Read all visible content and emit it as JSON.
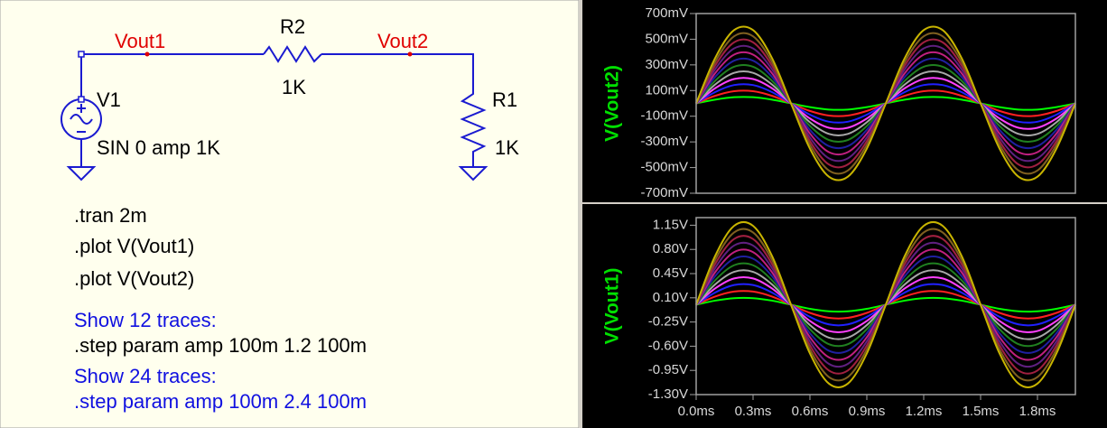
{
  "schematic": {
    "net_labels": [
      "Vout1",
      "Vout2"
    ],
    "components": [
      {
        "name": "R2",
        "value": "1K"
      },
      {
        "name": "R1",
        "value": "1K"
      },
      {
        "name": "V1",
        "value": "SIN 0 amp 1K"
      }
    ],
    "directives": [
      ".tran 2m",
      ".plot V(Vout1)",
      ".plot V(Vout2)"
    ],
    "notes": [
      {
        "label": "Show 12 traces:",
        "directive": ".step param amp 100m 1.2 100m"
      },
      {
        "label": "Show 24 traces:",
        "directive": ".step param amp 100m 2.4 100m"
      }
    ]
  },
  "chart_data": [
    {
      "type": "line",
      "y_label": "V(Vout2)",
      "x": [
        0,
        0.1,
        0.2,
        0.3,
        0.4,
        0.5,
        0.6,
        0.7,
        0.8,
        0.9,
        1.0,
        1.1,
        1.2,
        1.3,
        1.4,
        1.5,
        1.6,
        1.7,
        1.8,
        1.9,
        2.0
      ],
      "xlim": [
        0,
        2
      ],
      "ylim": [
        -700,
        700
      ],
      "yticks": [
        {
          "value": 700,
          "label": "700mV"
        },
        {
          "value": 500,
          "label": "500mV"
        },
        {
          "value": 300,
          "label": "300mV"
        },
        {
          "value": 100,
          "label": "100mV"
        },
        {
          "value": -100,
          "label": "-100mV"
        },
        {
          "value": -300,
          "label": "-300mV"
        },
        {
          "value": -500,
          "label": "-500mV"
        },
        {
          "value": -700,
          "label": "-700mV"
        }
      ],
      "series": [
        {
          "color": "#00ff00",
          "values": [
            0,
            29,
            48,
            48,
            29,
            0,
            -29,
            -48,
            -48,
            -29,
            0,
            29,
            48,
            48,
            29,
            0,
            -29,
            -48,
            -48,
            -29,
            0
          ]
        },
        {
          "color": "#ff2020",
          "values": [
            0,
            59,
            95,
            95,
            59,
            0,
            -59,
            -95,
            -95,
            -59,
            0,
            59,
            95,
            95,
            59,
            0,
            -59,
            -95,
            -95,
            -59,
            0
          ]
        },
        {
          "color": "#2020ff",
          "values": [
            0,
            88,
            143,
            143,
            88,
            0,
            -88,
            -143,
            -143,
            -88,
            0,
            88,
            143,
            143,
            88,
            0,
            -88,
            -143,
            -143,
            -88,
            0
          ]
        },
        {
          "color": "#ff40ff",
          "values": [
            0,
            118,
            190,
            190,
            118,
            0,
            -118,
            -190,
            -190,
            -118,
            0,
            118,
            190,
            190,
            118,
            0,
            -118,
            -190,
            -190,
            -118,
            0
          ]
        },
        {
          "color": "#a8a8a8",
          "values": [
            0,
            147,
            238,
            238,
            147,
            0,
            -147,
            -238,
            -238,
            -147,
            0,
            147,
            238,
            238,
            147,
            0,
            -147,
            -238,
            -238,
            -147,
            0
          ]
        },
        {
          "color": "#208020",
          "values": [
            0,
            176,
            285,
            285,
            176,
            0,
            -176,
            -285,
            -285,
            -176,
            0,
            176,
            285,
            285,
            176,
            0,
            -176,
            -285,
            -285,
            -176,
            0
          ]
        },
        {
          "color": "#2020a0",
          "values": [
            0,
            206,
            333,
            333,
            206,
            0,
            -206,
            -333,
            -333,
            -206,
            0,
            206,
            333,
            333,
            206,
            0,
            -206,
            -333,
            -333,
            -206,
            0
          ]
        },
        {
          "color": "#c02080",
          "values": [
            0,
            235,
            380,
            380,
            235,
            0,
            -235,
            -380,
            -380,
            -235,
            0,
            235,
            380,
            380,
            235,
            0,
            -235,
            -380,
            -380,
            -235,
            0
          ]
        },
        {
          "color": "#602080",
          "values": [
            0,
            265,
            428,
            428,
            265,
            0,
            -265,
            -428,
            -428,
            -265,
            0,
            265,
            428,
            428,
            265,
            0,
            -265,
            -428,
            -428,
            -265,
            0
          ]
        },
        {
          "color": "#a02040",
          "values": [
            0,
            294,
            476,
            476,
            294,
            0,
            -294,
            -476,
            -476,
            -294,
            0,
            294,
            476,
            476,
            294,
            0,
            -294,
            -476,
            -476,
            -294,
            0
          ]
        },
        {
          "color": "#806020",
          "values": [
            0,
            323,
            523,
            523,
            323,
            0,
            -323,
            -523,
            -523,
            -323,
            0,
            323,
            523,
            523,
            323,
            0,
            -323,
            -523,
            -523,
            -323,
            0
          ]
        },
        {
          "color": "#c8b400",
          "values": [
            0,
            353,
            571,
            571,
            353,
            0,
            -353,
            -571,
            -571,
            -353,
            0,
            353,
            571,
            571,
            353,
            0,
            -353,
            -571,
            -571,
            -353,
            0
          ]
        }
      ]
    },
    {
      "type": "line",
      "y_label": "V(Vout1)",
      "x": [
        0,
        0.1,
        0.2,
        0.3,
        0.4,
        0.5,
        0.6,
        0.7,
        0.8,
        0.9,
        1.0,
        1.1,
        1.2,
        1.3,
        1.4,
        1.5,
        1.6,
        1.7,
        1.8,
        1.9,
        2.0
      ],
      "xlim": [
        0,
        2
      ],
      "ylim": [
        -1.3,
        1.26
      ],
      "xticks": [
        {
          "value": 0,
          "label": "0.0ms"
        },
        {
          "value": 0.3,
          "label": "0.3ms"
        },
        {
          "value": 0.6,
          "label": "0.6ms"
        },
        {
          "value": 0.9,
          "label": "0.9ms"
        },
        {
          "value": 1.2,
          "label": "1.2ms"
        },
        {
          "value": 1.5,
          "label": "1.5ms"
        },
        {
          "value": 1.8,
          "label": "1.8ms"
        }
      ],
      "yticks": [
        {
          "value": 1.15,
          "label": "1.15V"
        },
        {
          "value": 0.8,
          "label": "0.80V"
        },
        {
          "value": 0.45,
          "label": "0.45V"
        },
        {
          "value": 0.1,
          "label": "0.10V"
        },
        {
          "value": -0.25,
          "label": "-0.25V"
        },
        {
          "value": -0.6,
          "label": "-0.60V"
        },
        {
          "value": -0.95,
          "label": "-0.95V"
        },
        {
          "value": -1.3,
          "label": "-1.30V"
        }
      ],
      "series": [
        {
          "color": "#00ff00",
          "values": [
            0,
            0.059,
            0.095,
            0.095,
            0.059,
            0,
            -0.059,
            -0.095,
            -0.095,
            -0.059,
            0,
            0.059,
            0.095,
            0.095,
            0.059,
            0,
            -0.059,
            -0.095,
            -0.095,
            -0.059,
            0
          ]
        },
        {
          "color": "#ff2020",
          "values": [
            0,
            0.118,
            0.19,
            0.19,
            0.118,
            0,
            -0.118,
            -0.19,
            -0.19,
            -0.118,
            0,
            0.118,
            0.19,
            0.19,
            0.118,
            0,
            -0.118,
            -0.19,
            -0.19,
            -0.118,
            0
          ]
        },
        {
          "color": "#2020ff",
          "values": [
            0,
            0.176,
            0.285,
            0.285,
            0.176,
            0,
            -0.176,
            -0.285,
            -0.285,
            -0.176,
            0,
            0.176,
            0.285,
            0.285,
            0.176,
            0,
            -0.176,
            -0.285,
            -0.285,
            -0.176,
            0
          ]
        },
        {
          "color": "#ff40ff",
          "values": [
            0,
            0.235,
            0.38,
            0.38,
            0.235,
            0,
            -0.235,
            -0.38,
            -0.38,
            -0.235,
            0,
            0.235,
            0.38,
            0.38,
            0.235,
            0,
            -0.235,
            -0.38,
            -0.38,
            -0.235,
            0
          ]
        },
        {
          "color": "#a8a8a8",
          "values": [
            0,
            0.294,
            0.476,
            0.476,
            0.294,
            0,
            -0.294,
            -0.476,
            -0.476,
            -0.294,
            0,
            0.294,
            0.476,
            0.476,
            0.294,
            0,
            -0.294,
            -0.476,
            -0.476,
            -0.294,
            0
          ]
        },
        {
          "color": "#208020",
          "values": [
            0,
            0.353,
            0.571,
            0.571,
            0.353,
            0,
            -0.353,
            -0.571,
            -0.571,
            -0.353,
            0,
            0.353,
            0.571,
            0.571,
            0.353,
            0,
            -0.353,
            -0.571,
            -0.571,
            -0.353,
            0
          ]
        },
        {
          "color": "#2020a0",
          "values": [
            0,
            0.412,
            0.666,
            0.666,
            0.412,
            0,
            -0.412,
            -0.666,
            -0.666,
            -0.412,
            0,
            0.412,
            0.666,
            0.666,
            0.412,
            0,
            -0.412,
            -0.666,
            -0.666,
            -0.412,
            0
          ]
        },
        {
          "color": "#c02080",
          "values": [
            0,
            0.47,
            0.761,
            0.761,
            0.47,
            0,
            -0.47,
            -0.761,
            -0.761,
            -0.47,
            0,
            0.47,
            0.761,
            0.761,
            0.47,
            0,
            -0.47,
            -0.761,
            -0.761,
            -0.47,
            0
          ]
        },
        {
          "color": "#602080",
          "values": [
            0,
            0.529,
            0.856,
            0.856,
            0.529,
            0,
            -0.529,
            -0.856,
            -0.856,
            -0.529,
            0,
            0.529,
            0.856,
            0.856,
            0.529,
            0,
            -0.529,
            -0.856,
            -0.856,
            -0.529,
            0
          ]
        },
        {
          "color": "#a02040",
          "values": [
            0,
            0.588,
            0.951,
            0.951,
            0.588,
            0,
            -0.588,
            -0.951,
            -0.951,
            -0.588,
            0,
            0.588,
            0.951,
            0.951,
            0.588,
            0,
            -0.588,
            -0.951,
            -0.951,
            -0.588,
            0
          ]
        },
        {
          "color": "#806020",
          "values": [
            0,
            0.647,
            1.046,
            1.046,
            0.647,
            0,
            -0.647,
            -1.046,
            -1.046,
            -0.647,
            0,
            0.647,
            1.046,
            1.046,
            0.647,
            0,
            -0.647,
            -1.046,
            -1.046,
            -0.647,
            0
          ]
        },
        {
          "color": "#c8b400",
          "values": [
            0,
            0.705,
            1.141,
            1.141,
            0.705,
            0,
            -0.705,
            -1.141,
            -1.141,
            -0.705,
            0,
            0.705,
            1.141,
            1.141,
            0.705,
            0,
            -0.705,
            -1.141,
            -1.141,
            -0.705,
            0
          ]
        }
      ]
    }
  ]
}
